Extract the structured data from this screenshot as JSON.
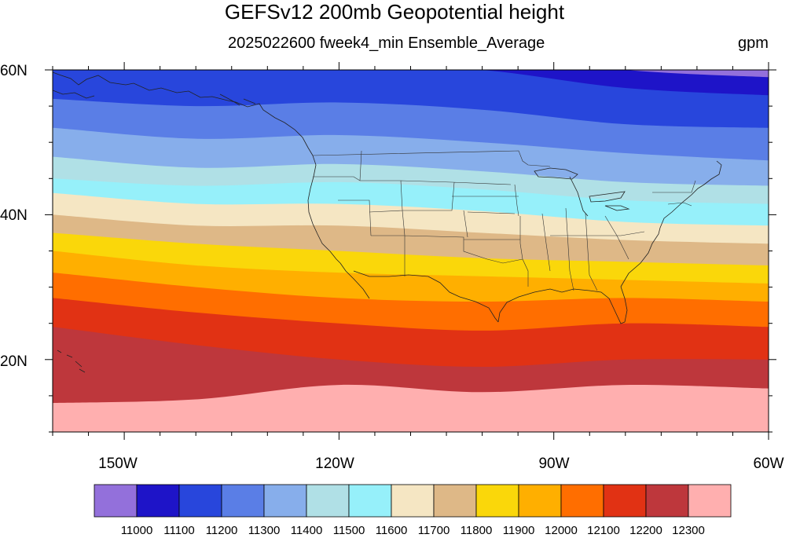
{
  "title": "GEFSv12 200mb Geopotential height",
  "subtitle": "2025022600 fweek4_min Ensemble_Average",
  "units": "gpm",
  "map": {
    "projection": "cylindrical equidistant",
    "lon_range": [
      -160,
      -60
    ],
    "lat_range": [
      10,
      60
    ],
    "lat_labels": [
      "60N",
      "40N",
      "20N"
    ],
    "lon_labels": [
      "150W",
      "120W",
      "90W",
      "60W"
    ],
    "overlays": [
      "coastlines",
      "US state boundaries"
    ]
  },
  "colorbar": {
    "colors": [
      "#9370db",
      "#1e14c8",
      "#2846dc",
      "#5a7ee6",
      "#87aeeb",
      "#b0e0e6",
      "#96f0fa",
      "#f5e6c3",
      "#deb887",
      "#fad70a",
      "#ffaf00",
      "#ff6e00",
      "#e13214",
      "#be373c",
      "#ffafaf"
    ],
    "labels": [
      "11000",
      "11100",
      "11200",
      "11300",
      "11400",
      "11500",
      "11600",
      "11700",
      "11800",
      "11900",
      "12000",
      "12100",
      "12200",
      "12300"
    ]
  },
  "contour_levels": {
    "values": [
      11000,
      11100,
      11200,
      11300,
      11400,
      11500,
      11600,
      11700,
      11800,
      11900,
      12000,
      12100,
      12200,
      12300
    ],
    "boundary_lat_at_lon": {
      "lon": [
        -160,
        -140,
        -120,
        -100,
        -80,
        -60
      ],
      "11000": [
        62.0,
        62.5,
        63.0,
        62.5,
        60.0,
        59.0
      ],
      "11100": [
        60.0,
        60.5,
        61.0,
        60.0,
        57.5,
        56.5
      ],
      "11200": [
        56.0,
        55.0,
        55.5,
        54.5,
        52.5,
        52.0
      ],
      "11300": [
        52.0,
        50.5,
        51.0,
        50.0,
        48.5,
        47.5
      ],
      "11400": [
        48.0,
        46.5,
        47.0,
        46.0,
        44.5,
        44.0
      ],
      "11500": [
        45.0,
        44.0,
        44.5,
        43.5,
        42.0,
        41.5
      ],
      "11600": [
        43.0,
        41.5,
        41.5,
        40.5,
        39.0,
        38.5
      ],
      "11700": [
        40.0,
        38.5,
        38.5,
        37.5,
        36.5,
        36.0
      ],
      "11800": [
        37.5,
        36.0,
        35.0,
        34.0,
        33.5,
        33.0
      ],
      "11900": [
        35.0,
        33.0,
        32.0,
        31.5,
        31.0,
        30.5
      ],
      "12000": [
        32.0,
        30.0,
        28.5,
        28.0,
        28.5,
        28.0
      ],
      "12100": [
        28.5,
        26.5,
        25.0,
        24.0,
        25.0,
        24.5
      ],
      "12200": [
        24.5,
        22.0,
        20.0,
        19.0,
        20.0,
        20.0
      ],
      "12300": [
        14.0,
        14.5,
        16.5,
        15.5,
        16.5,
        16.0
      ]
    }
  }
}
